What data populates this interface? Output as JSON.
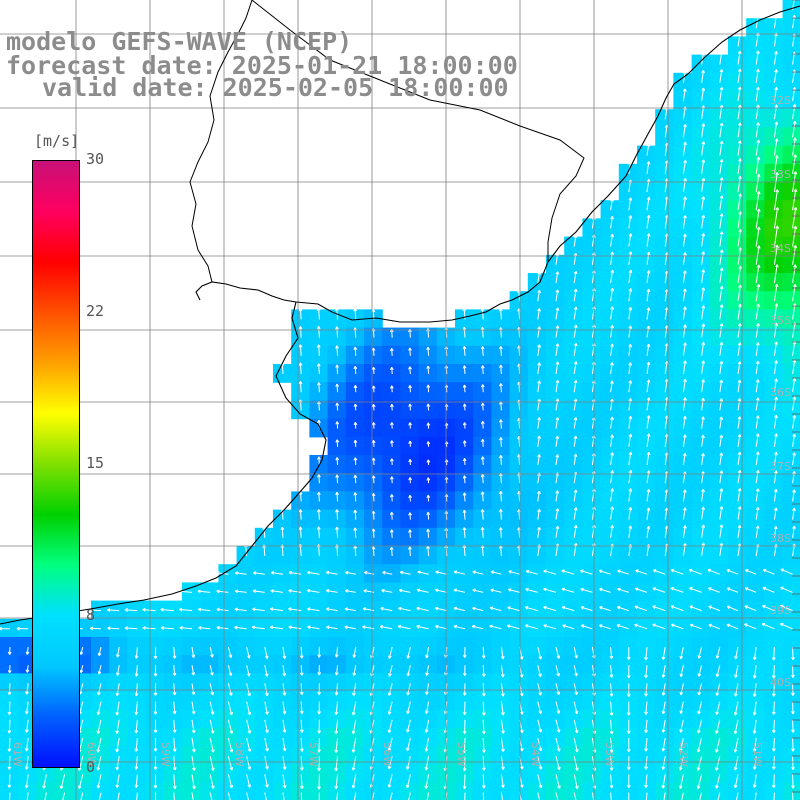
{
  "title": {
    "line1": "modelo GEFS-WAVE (NCEP)",
    "line2": "forecast date: 2025-01-21 18:00:00",
    "line3": "valid date: 2025-02-05 18:00:00"
  },
  "colorbar": {
    "unit": "[m/s]",
    "ticks": [
      "30",
      "22",
      "15",
      "8",
      "0"
    ],
    "colors": [
      "#0010ff",
      "#0060ff",
      "#00c8ff",
      "#00e0ff",
      "#00ff80",
      "#00d000",
      "#80e000",
      "#ffff00",
      "#ffa000",
      "#ff5000",
      "#ff0000",
      "#ff0060",
      "#c81078"
    ]
  },
  "map": {
    "lat_labels": [
      "32S",
      "33S",
      "34S",
      "35S",
      "36S",
      "37S",
      "38S",
      "39S",
      "40S"
    ],
    "lon_labels": [
      "61W",
      "60W",
      "59W",
      "58W",
      "57W",
      "56W",
      "55W",
      "54W",
      "53W",
      "52W",
      "51W"
    ],
    "land_color": "#ffffff",
    "coast_color": "#000000",
    "grid_color": "#808080",
    "arrow_color": "#ffffff"
  }
}
